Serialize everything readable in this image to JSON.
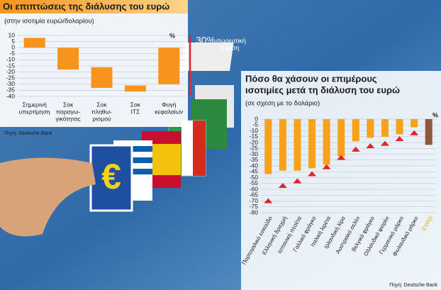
{
  "chart_data": [
    {
      "type": "floating-bar",
      "title": "Οι επιπτώσεις της διάλυσης του ευρώ",
      "subtitle": "(στην ισοτιμία ευρώ/δολαρίου)",
      "unit": "%",
      "categories": [
        [
          "Σημερινή",
          "υπερτίμηση"
        ],
        [
          "Σοκ",
          "παραγω-",
          "γικότητας"
        ],
        [
          "Σοκ",
          "πληθω-",
          "ρισμού"
        ],
        [
          "Σοκ",
          "ΙΤΣ"
        ],
        [
          "Φυγή",
          "κεφαλαίων"
        ]
      ],
      "values": [
        [
          8,
          0
        ],
        [
          0,
          -18
        ],
        [
          -16,
          -33
        ],
        [
          -31,
          -36
        ],
        [
          0,
          -30
        ]
      ],
      "color": "#f7941d",
      "ylim": [
        10,
        -40
      ],
      "yticks": [
        10,
        5,
        0,
        -5,
        -10,
        -15,
        -20,
        -25,
        -30,
        -35,
        -40
      ],
      "grid": true,
      "annotation": [
        "30%",
        "σωρευτική",
        "πτώση"
      ],
      "annotation_color": "#e0242b",
      "source": "Πηγή: Deutsche Bank"
    },
    {
      "type": "bar",
      "title": [
        "Πόσο θα χάσουν οι επιμέρους",
        "ισοτιμίες μετά τη διάλυση του ευρώ"
      ],
      "subtitle": "(σε σχέση με το δολάριο)",
      "unit": "%",
      "categories": [
        "Πορτογαλικό εσκούδο",
        "Ελληνική δραχμή",
        "Ισπανική πεσέτα",
        "Γαλλικό φράγκο",
        "Ιταλική λιρέτα",
        "Ιρλανδική λίρα",
        "Αυστριακό σελίνι",
        "Βελγικό φράγκο",
        "Ολλανδικό φιορίνι",
        "Γερμανικό μάρκο",
        "Φινλανδικό μάρκο",
        "ΕΥΡΩ"
      ],
      "values": [
        -47,
        -44,
        -44,
        -42,
        -39,
        -32,
        -19,
        -16,
        -15,
        -13,
        -7,
        -22
      ],
      "colors": [
        "#f7a21b",
        "#f7a21b",
        "#f7a21b",
        "#f7a21b",
        "#f7a21b",
        "#f7a21b",
        "#f7a21b",
        "#f7a21b",
        "#f7a21b",
        "#f7a21b",
        "#f7a21b",
        "#8b5a3c"
      ],
      "category_label_colors": [
        "#1a1a1a",
        "#1a1a1a",
        "#1a1a1a",
        "#1a1a1a",
        "#1a1a1a",
        "#1a1a1a",
        "#1a1a1a",
        "#1a1a1a",
        "#1a1a1a",
        "#1a1a1a",
        "#1a1a1a",
        "#c9b200"
      ],
      "markers": {
        "color": "#e0242b",
        "values": [
          -70,
          -57,
          -53,
          -47,
          -41,
          -33,
          -26,
          -23,
          -21,
          -17,
          -12,
          null
        ]
      },
      "ylim": [
        0,
        -80
      ],
      "yticks": [
        0,
        -5,
        -10,
        -15,
        -20,
        -25,
        -30,
        -35,
        -40,
        -45,
        -50,
        -55,
        -60,
        -65,
        -70,
        -75,
        -80
      ],
      "grid": true,
      "source": "Πηγή: Deutsche Bank"
    }
  ]
}
